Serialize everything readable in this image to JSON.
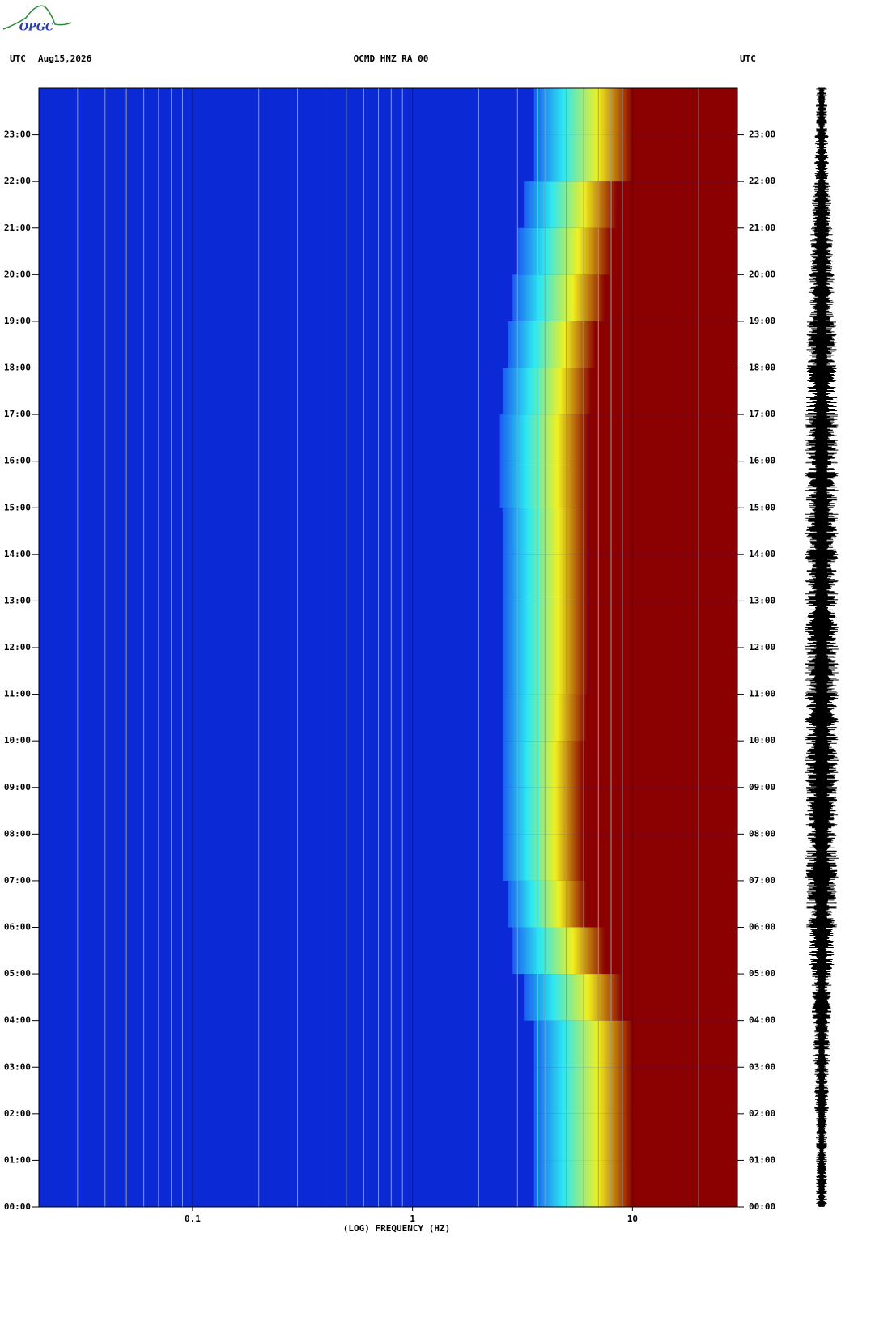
{
  "chart_data": {
    "type": "spectrogram",
    "logo": "OPGC",
    "header_left_zone": "UTC",
    "date": "Aug15,2026",
    "title": "OCMD HNZ RA 00",
    "header_right_zone": "UTC",
    "x_label": "(LOG) FREQUENCY (HZ)",
    "xscale": "log",
    "xlim": [
      0.02,
      30
    ],
    "xticks": [
      0.1,
      1,
      10
    ],
    "x_minor_grid": [
      0.03,
      0.04,
      0.05,
      0.06,
      0.07,
      0.08,
      0.09,
      0.2,
      0.3,
      0.4,
      0.5,
      0.6,
      0.7,
      0.8,
      0.9,
      2,
      3,
      4,
      5,
      6,
      7,
      8,
      9,
      20
    ],
    "ylim": [
      0,
      24
    ],
    "yticks": [
      {
        "value": 0,
        "label": "00:00"
      },
      {
        "value": 1,
        "label": "01:00"
      },
      {
        "value": 2,
        "label": "02:00"
      },
      {
        "value": 3,
        "label": "03:00"
      },
      {
        "value": 4,
        "label": "04:00"
      },
      {
        "value": 5,
        "label": "05:00"
      },
      {
        "value": 6,
        "label": "06:00"
      },
      {
        "value": 7,
        "label": "07:00"
      },
      {
        "value": 8,
        "label": "08:00"
      },
      {
        "value": 9,
        "label": "09:00"
      },
      {
        "value": 10,
        "label": "10:00"
      },
      {
        "value": 11,
        "label": "11:00"
      },
      {
        "value": 12,
        "label": "12:00"
      },
      {
        "value": 13,
        "label": "13:00"
      },
      {
        "value": 14,
        "label": "14:00"
      },
      {
        "value": 15,
        "label": "15:00"
      },
      {
        "value": 16,
        "label": "16:00"
      },
      {
        "value": 17,
        "label": "17:00"
      },
      {
        "value": 18,
        "label": "18:00"
      },
      {
        "value": 19,
        "label": "19:00"
      },
      {
        "value": 20,
        "label": "20:00"
      },
      {
        "value": 21,
        "label": "21:00"
      },
      {
        "value": 22,
        "label": "22:00"
      },
      {
        "value": 23,
        "label": "23:00"
      }
    ],
    "hours": [
      0,
      1,
      2,
      3,
      4,
      5,
      6,
      7,
      8,
      9,
      10,
      11,
      12,
      13,
      14,
      15,
      16,
      17,
      18,
      19,
      20,
      21,
      22,
      23
    ],
    "cyan_edge_hz": [
      5,
      5,
      5,
      5,
      4.5,
      4,
      3.8,
      3.6,
      3.6,
      3.6,
      3.6,
      3.6,
      3.6,
      3.6,
      3.6,
      3.5,
      3.5,
      3.6,
      3.8,
      4,
      4.2,
      4.5,
      5,
      5
    ],
    "red_edge_hz": [
      10,
      10,
      10,
      10,
      9,
      7.5,
      6.2,
      6,
      6,
      6,
      6.2,
      6.3,
      6.3,
      6.3,
      6.3,
      6.3,
      6.3,
      6.5,
      6.8,
      7.5,
      8,
      8.5,
      10,
      10
    ],
    "spectral_line_hz": 3.7,
    "trace_amplitude": [
      0.2,
      0.2,
      0.25,
      0.3,
      0.35,
      0.45,
      0.55,
      0.6,
      0.6,
      0.6,
      0.6,
      0.6,
      0.6,
      0.6,
      0.6,
      0.6,
      0.6,
      0.55,
      0.55,
      0.45,
      0.4,
      0.35,
      0.25,
      0.2
    ],
    "colors": {
      "background": "#0b2ad6",
      "low": "#1a5cf0",
      "cyan": "#2ee8f0",
      "yellow": "#f0f020",
      "red": "#8b0000",
      "grid_minor": "#9a9a9a",
      "grid_major": "#202020",
      "trace": "#000000"
    }
  }
}
